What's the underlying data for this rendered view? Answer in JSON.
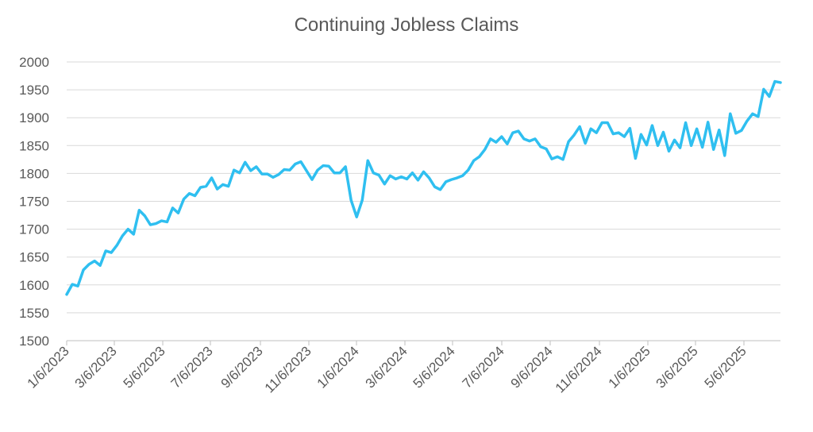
{
  "chart_data": {
    "type": "line",
    "title": "Continuing Jobless Claims",
    "xlabel": "",
    "ylabel": "",
    "ylim": [
      1500,
      2000
    ],
    "yticks": [
      1500,
      1550,
      1600,
      1650,
      1700,
      1750,
      1800,
      1850,
      1900,
      1950,
      2000
    ],
    "x_tick_labels": [
      "1/6/2023",
      "3/6/2023",
      "5/6/2023",
      "7/6/2023",
      "9/6/2023",
      "11/6/2023",
      "1/6/2024",
      "3/6/2024",
      "5/6/2024",
      "7/6/2024",
      "9/6/2024",
      "11/6/2024",
      "1/6/2025",
      "3/6/2025",
      "5/6/2025"
    ],
    "grid": true,
    "line_color": "#2FBFF0",
    "series": [
      {
        "values": [
          1583,
          1601,
          1598,
          1627,
          1637,
          1643,
          1635,
          1661,
          1658,
          1671,
          1688,
          1700,
          1691,
          1734,
          1724,
          1708,
          1710,
          1715,
          1713,
          1738,
          1729,
          1754,
          1764,
          1760,
          1775,
          1777,
          1792,
          1772,
          1780,
          1777,
          1806,
          1801,
          1820,
          1805,
          1812,
          1799,
          1799,
          1793,
          1798,
          1807,
          1806,
          1817,
          1821,
          1805,
          1789,
          1806,
          1814,
          1813,
          1801,
          1801,
          1812,
          1752,
          1722,
          1752,
          1823,
          1801,
          1797,
          1781,
          1796,
          1790,
          1794,
          1790,
          1801,
          1788,
          1803,
          1792,
          1776,
          1771,
          1785,
          1789,
          1792,
          1796,
          1806,
          1823,
          1830,
          1843,
          1862,
          1856,
          1866,
          1853,
          1873,
          1876,
          1862,
          1858,
          1862,
          1848,
          1844,
          1826,
          1830,
          1825,
          1857,
          1869,
          1884,
          1854,
          1880,
          1873,
          1891,
          1891,
          1871,
          1873,
          1866,
          1881,
          1827,
          1870,
          1851,
          1886,
          1850,
          1874,
          1840,
          1860,
          1846,
          1891,
          1850,
          1880,
          1847,
          1892,
          1843,
          1878,
          1832,
          1907,
          1872,
          1877,
          1894,
          1907,
          1902,
          1951,
          1938,
          1965,
          1963
        ]
      }
    ]
  }
}
